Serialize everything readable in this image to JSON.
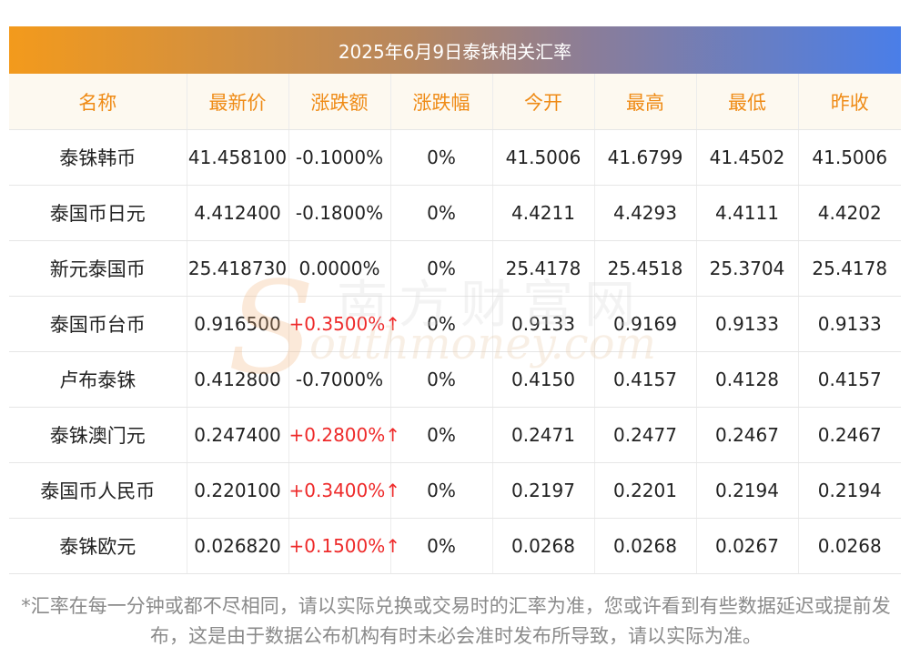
{
  "title": "2025年6月9日泰铢相关汇率",
  "headers": [
    "名称",
    "最新价",
    "涨跌额",
    "涨跌幅",
    "今开",
    "最高",
    "最低",
    "昨收"
  ],
  "rows": [
    {
      "name": "泰铢韩币",
      "latest": "41.458100",
      "change": "-0.1000%",
      "pct": "0%",
      "open": "41.5006",
      "high": "41.6799",
      "low": "41.4502",
      "prev": "41.5006",
      "up": false
    },
    {
      "name": "泰国币日元",
      "latest": "4.412400",
      "change": "-0.1800%",
      "pct": "0%",
      "open": "4.4211",
      "high": "4.4293",
      "low": "4.4111",
      "prev": "4.4202",
      "up": false
    },
    {
      "name": "新元泰国币",
      "latest": "25.418730",
      "change": "0.0000%",
      "pct": "0%",
      "open": "25.4178",
      "high": "25.4518",
      "low": "25.3704",
      "prev": "25.4178",
      "up": false
    },
    {
      "name": "泰国币台币",
      "latest": "0.916500",
      "change": "+0.3500%↑",
      "pct": "0%",
      "open": "0.9133",
      "high": "0.9169",
      "low": "0.9133",
      "prev": "0.9133",
      "up": true
    },
    {
      "name": "卢布泰铢",
      "latest": "0.412800",
      "change": "-0.7000%",
      "pct": "0%",
      "open": "0.4150",
      "high": "0.4157",
      "low": "0.4128",
      "prev": "0.4157",
      "up": false
    },
    {
      "name": "泰铢澳门元",
      "latest": "0.247400",
      "change": "+0.2800%↑",
      "pct": "0%",
      "open": "0.2471",
      "high": "0.2477",
      "low": "0.2467",
      "prev": "0.2467",
      "up": true
    },
    {
      "name": "泰国币人民币",
      "latest": "0.220100",
      "change": "+0.3400%↑",
      "pct": "0%",
      "open": "0.2197",
      "high": "0.2201",
      "low": "0.2194",
      "prev": "0.2194",
      "up": true
    },
    {
      "name": "泰铢欧元",
      "latest": "0.026820",
      "change": "+0.1500%↑",
      "pct": "0%",
      "open": "0.0268",
      "high": "0.0268",
      "low": "0.0267",
      "prev": "0.0268",
      "up": true
    }
  ],
  "watermark": {
    "cn": "南方财富网",
    "en": "outhmoney.com",
    "s": "S"
  },
  "footnote": "*汇率在每一分钟或都不尽相同，请以实际兑换或交易时的汇率为准，您或许看到有些数据延迟或提前发布，这是由于数据公布机构有时未必会准时发布所导致，请以实际为准。",
  "colors": {
    "header_text": "#ef8b16",
    "up": "#ee2a2a",
    "gradient_start": "#f39a1c",
    "gradient_end": "#4a7ee8"
  }
}
